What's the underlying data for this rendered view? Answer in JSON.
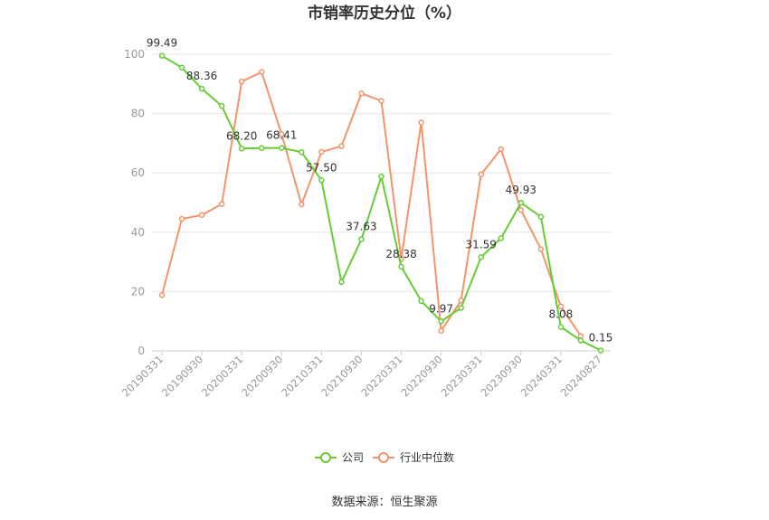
{
  "chart_data": {
    "type": "line",
    "title": "市销率历史分位（%）",
    "x": [
      "20190331",
      "20190630",
      "20190930",
      "20191231",
      "20200331",
      "20200630",
      "20200930",
      "20201231",
      "20210331",
      "20210630",
      "20210930",
      "20211231",
      "20220331",
      "20220630",
      "20220930",
      "20221231",
      "20230331",
      "20230630",
      "20230930",
      "20231231",
      "20240331",
      "20240630",
      "20240827"
    ],
    "x_tick_labels": [
      "20190331",
      "20190930",
      "20200331",
      "20200930",
      "20210331",
      "20210930",
      "20220331",
      "20220930",
      "20230331",
      "20230930",
      "20240331",
      "20240827"
    ],
    "ylim": [
      0,
      100
    ],
    "y_ticks": [
      0,
      20,
      40,
      60,
      80,
      100
    ],
    "grid": true,
    "legend_position": "bottom",
    "series": [
      {
        "name": "公司",
        "color": "#66cc33",
        "values": [
          99.49,
          95.5,
          88.36,
          82.6,
          68.2,
          68.4,
          68.41,
          67.0,
          57.5,
          23.2,
          37.63,
          58.8,
          28.38,
          16.8,
          9.97,
          14.5,
          31.59,
          38.0,
          49.93,
          45.2,
          8.08,
          3.5,
          0.15
        ],
        "labels": [
          "99.49",
          "",
          "88.36",
          "",
          "68.20",
          "",
          "68.41",
          "",
          "57.50",
          "",
          "37.63",
          "",
          "28.38",
          "",
          "9.97",
          "",
          "31.59",
          "",
          "49.93",
          "",
          "8.08",
          "",
          "0.15"
        ]
      },
      {
        "name": "行业中位数",
        "color": "#f4946a",
        "values": [
          18.8,
          44.5,
          45.8,
          49.5,
          90.8,
          94.0,
          73.0,
          49.4,
          67.1,
          69.0,
          86.8,
          84.3,
          31.0,
          77.0,
          6.8,
          17.0,
          59.5,
          68.0,
          47.5,
          34.3,
          15.0,
          5.0,
          null
        ]
      }
    ]
  },
  "source_text": "数据来源：恒生聚源"
}
